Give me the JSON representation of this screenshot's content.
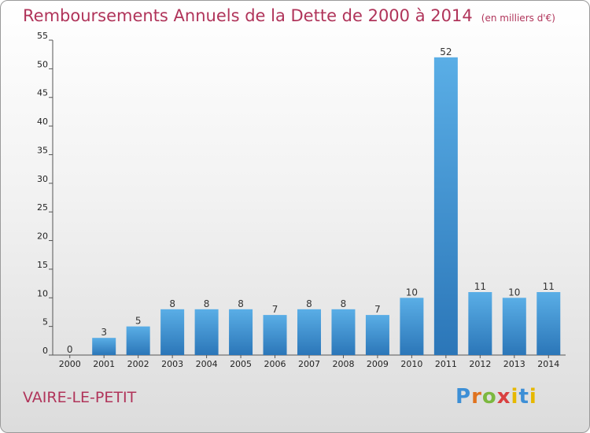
{
  "title": "Remboursements Annuels de la Dette de 2000 à 2014",
  "unit": "(en milliers d'€)",
  "commune": "VAIRE-LE-PETIT",
  "logo": "Proxiti",
  "colors": {
    "bar_top": "#5aaee6",
    "bar_bottom": "#2b76b8",
    "title": "#b0345a"
  },
  "chart_data": {
    "type": "bar",
    "categories": [
      "2000",
      "2001",
      "2002",
      "2003",
      "2004",
      "2005",
      "2006",
      "2007",
      "2008",
      "2009",
      "2010",
      "2011",
      "2012",
      "2013",
      "2014"
    ],
    "values": [
      0,
      3,
      5,
      8,
      8,
      8,
      7,
      8,
      8,
      7,
      10,
      52,
      11,
      10,
      11
    ],
    "ylim": [
      0,
      55
    ],
    "yticks": [
      0,
      5,
      10,
      15,
      20,
      25,
      30,
      35,
      40,
      45,
      50,
      55
    ],
    "grid": false,
    "legend": "none"
  }
}
